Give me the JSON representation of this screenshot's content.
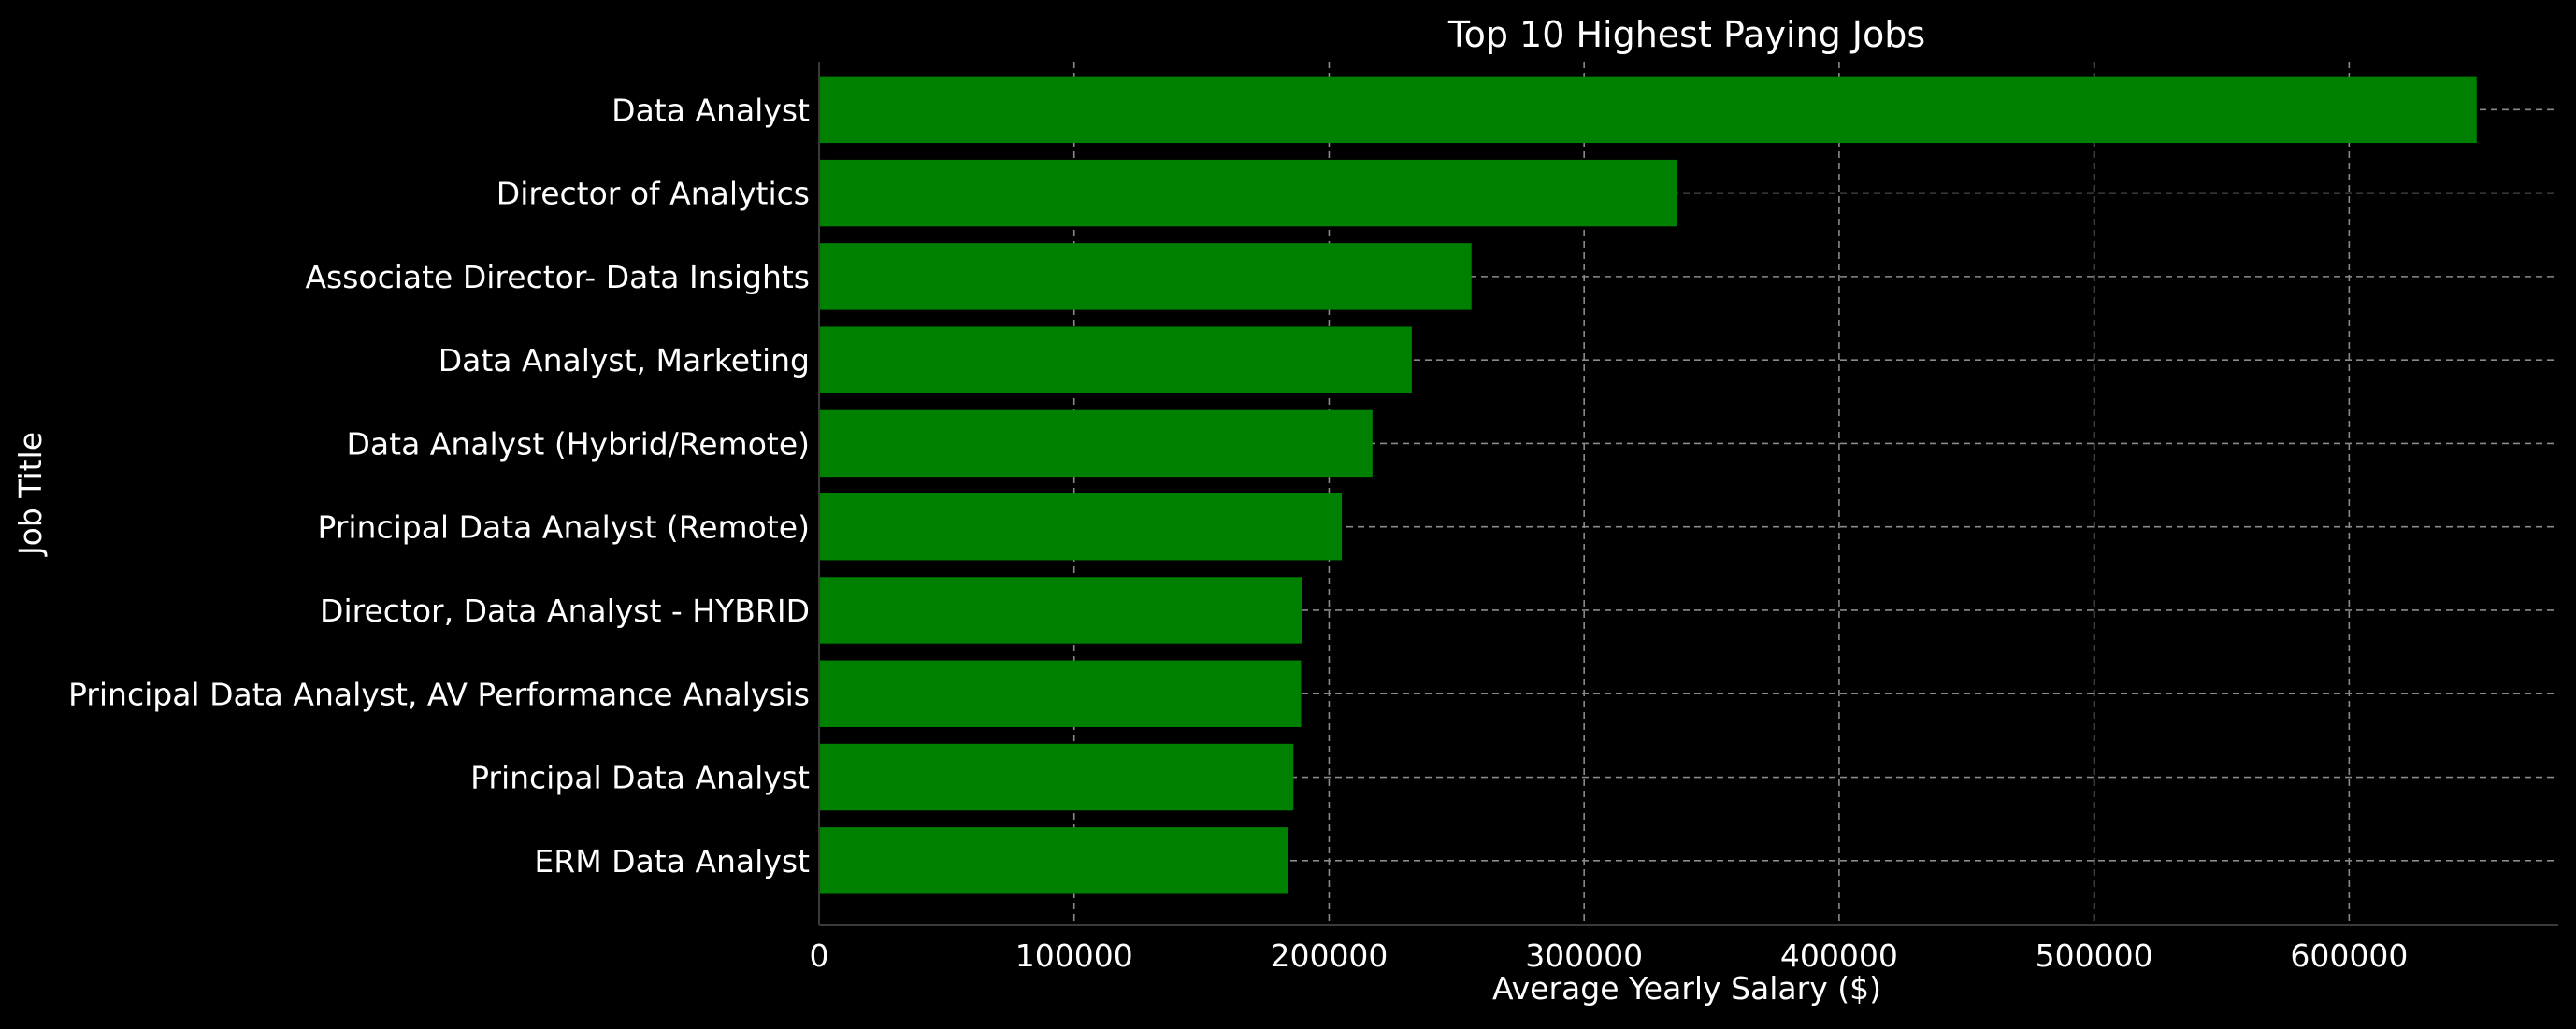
{
  "chart_data": {
    "type": "bar",
    "orientation": "horizontal",
    "title": "Top 10 Highest Paying Jobs",
    "xlabel": "Average Yearly Salary ($)",
    "ylabel": "Job Title",
    "categories": [
      "Data Analyst",
      "Director of Analytics",
      "Associate Director- Data Insights",
      "Data Analyst, Marketing",
      "Data Analyst (Hybrid/Remote)",
      "Principal Data Analyst (Remote)",
      "Director, Data Analyst - HYBRID",
      "Principal Data Analyst, AV Performance Analysis",
      "Principal Data Analyst",
      "ERM Data Analyst"
    ],
    "values": [
      650000,
      336500,
      255830,
      232423,
      217000,
      205000,
      189309,
      189000,
      186000,
      184000
    ],
    "xlim": [
      0,
      682000
    ],
    "xticks": [
      0,
      100000,
      200000,
      300000,
      400000,
      500000,
      600000
    ],
    "grid": true,
    "legend": "none",
    "colors": {
      "background": "#000000",
      "bar": "#008000",
      "text": "#ffffff",
      "grid": "#8a8a8a",
      "spine": "#3a3a3a"
    }
  }
}
